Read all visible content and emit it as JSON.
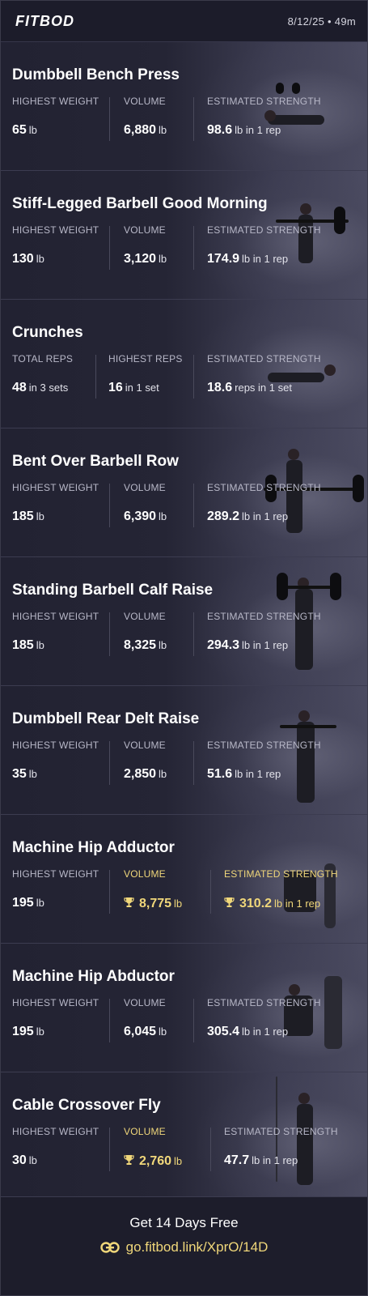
{
  "header": {
    "logo": "FITBOD",
    "meta": "8/12/25 • 49m"
  },
  "colors": {
    "background": "#1f1f2e",
    "accent_gold": "#f0d77a",
    "label": "#b8b8c8"
  },
  "exercises": [
    {
      "title": "Dumbbell Bench Press",
      "stats": [
        {
          "label": "HIGHEST WEIGHT",
          "value": "65",
          "unit": "lb",
          "highlight": false
        },
        {
          "label": "VOLUME",
          "value": "6,880",
          "unit": "lb",
          "highlight": false
        },
        {
          "label": "ESTIMATED STRENGTH",
          "value": "98.6",
          "unit": "lb in 1 rep",
          "highlight": false
        }
      ]
    },
    {
      "title": "Stiff-Legged Barbell Good Morning",
      "stats": [
        {
          "label": "HIGHEST WEIGHT",
          "value": "130",
          "unit": "lb",
          "highlight": false
        },
        {
          "label": "VOLUME",
          "value": "3,120",
          "unit": "lb",
          "highlight": false
        },
        {
          "label": "ESTIMATED STRENGTH",
          "value": "174.9",
          "unit": "lb in 1 rep",
          "highlight": false
        }
      ]
    },
    {
      "title": "Crunches",
      "stats": [
        {
          "label": "TOTAL REPS",
          "value": "48",
          "unit": "in 3 sets",
          "highlight": false
        },
        {
          "label": "HIGHEST REPS",
          "value": "16",
          "unit": "in 1 set",
          "highlight": false
        },
        {
          "label": "ESTIMATED STRENGTH",
          "value": "18.6",
          "unit": "reps in 1 set",
          "highlight": false
        }
      ]
    },
    {
      "title": "Bent Over Barbell Row",
      "stats": [
        {
          "label": "HIGHEST WEIGHT",
          "value": "185",
          "unit": "lb",
          "highlight": false
        },
        {
          "label": "VOLUME",
          "value": "6,390",
          "unit": "lb",
          "highlight": false
        },
        {
          "label": "ESTIMATED STRENGTH",
          "value": "289.2",
          "unit": "lb in 1 rep",
          "highlight": false
        }
      ]
    },
    {
      "title": "Standing Barbell Calf Raise",
      "stats": [
        {
          "label": "HIGHEST WEIGHT",
          "value": "185",
          "unit": "lb",
          "highlight": false
        },
        {
          "label": "VOLUME",
          "value": "8,325",
          "unit": "lb",
          "highlight": false
        },
        {
          "label": "ESTIMATED STRENGTH",
          "value": "294.3",
          "unit": "lb in 1 rep",
          "highlight": false
        }
      ]
    },
    {
      "title": "Dumbbell Rear Delt Raise",
      "stats": [
        {
          "label": "HIGHEST WEIGHT",
          "value": "35",
          "unit": "lb",
          "highlight": false
        },
        {
          "label": "VOLUME",
          "value": "2,850",
          "unit": "lb",
          "highlight": false
        },
        {
          "label": "ESTIMATED STRENGTH",
          "value": "51.6",
          "unit": "lb in 1 rep",
          "highlight": false
        }
      ]
    },
    {
      "title": "Machine Hip Adductor",
      "stats": [
        {
          "label": "HIGHEST WEIGHT",
          "value": "195",
          "unit": "lb",
          "highlight": false
        },
        {
          "label": "VOLUME",
          "value": "8,775",
          "unit": "lb",
          "highlight": true
        },
        {
          "label": "ESTIMATED STRENGTH",
          "value": "310.2",
          "unit": "lb in 1 rep",
          "highlight": true
        }
      ]
    },
    {
      "title": "Machine Hip Abductor",
      "stats": [
        {
          "label": "HIGHEST WEIGHT",
          "value": "195",
          "unit": "lb",
          "highlight": false
        },
        {
          "label": "VOLUME",
          "value": "6,045",
          "unit": "lb",
          "highlight": false
        },
        {
          "label": "ESTIMATED STRENGTH",
          "value": "305.4",
          "unit": "lb in 1 rep",
          "highlight": false
        }
      ]
    },
    {
      "title": "Cable Crossover Fly",
      "stats": [
        {
          "label": "HIGHEST WEIGHT",
          "value": "30",
          "unit": "lb",
          "highlight": false
        },
        {
          "label": "VOLUME",
          "value": "2,760",
          "unit": "lb",
          "highlight": true
        },
        {
          "label": "ESTIMATED STRENGTH",
          "value": "47.7",
          "unit": "lb in 1 rep",
          "highlight": false
        }
      ]
    }
  ],
  "footer": {
    "cta": "Get 14 Days Free",
    "link": "go.fitbod.link/XprO/14D",
    "link_icon": "link-icon"
  },
  "icons": {
    "trophy": "trophy-icon"
  }
}
